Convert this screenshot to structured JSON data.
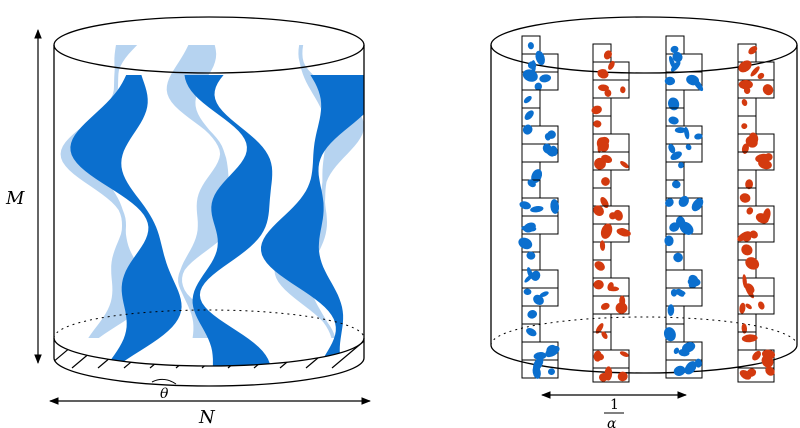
{
  "labels": {
    "height": "M",
    "width": "N",
    "angle": "θ",
    "spacing_numerator": "1",
    "spacing_denominator": "α"
  },
  "colors": {
    "outline": "#000000",
    "strand_dark": "#0b6fce",
    "strand_light": "#b6d3f0",
    "strand_red": "#d33a0f"
  }
}
